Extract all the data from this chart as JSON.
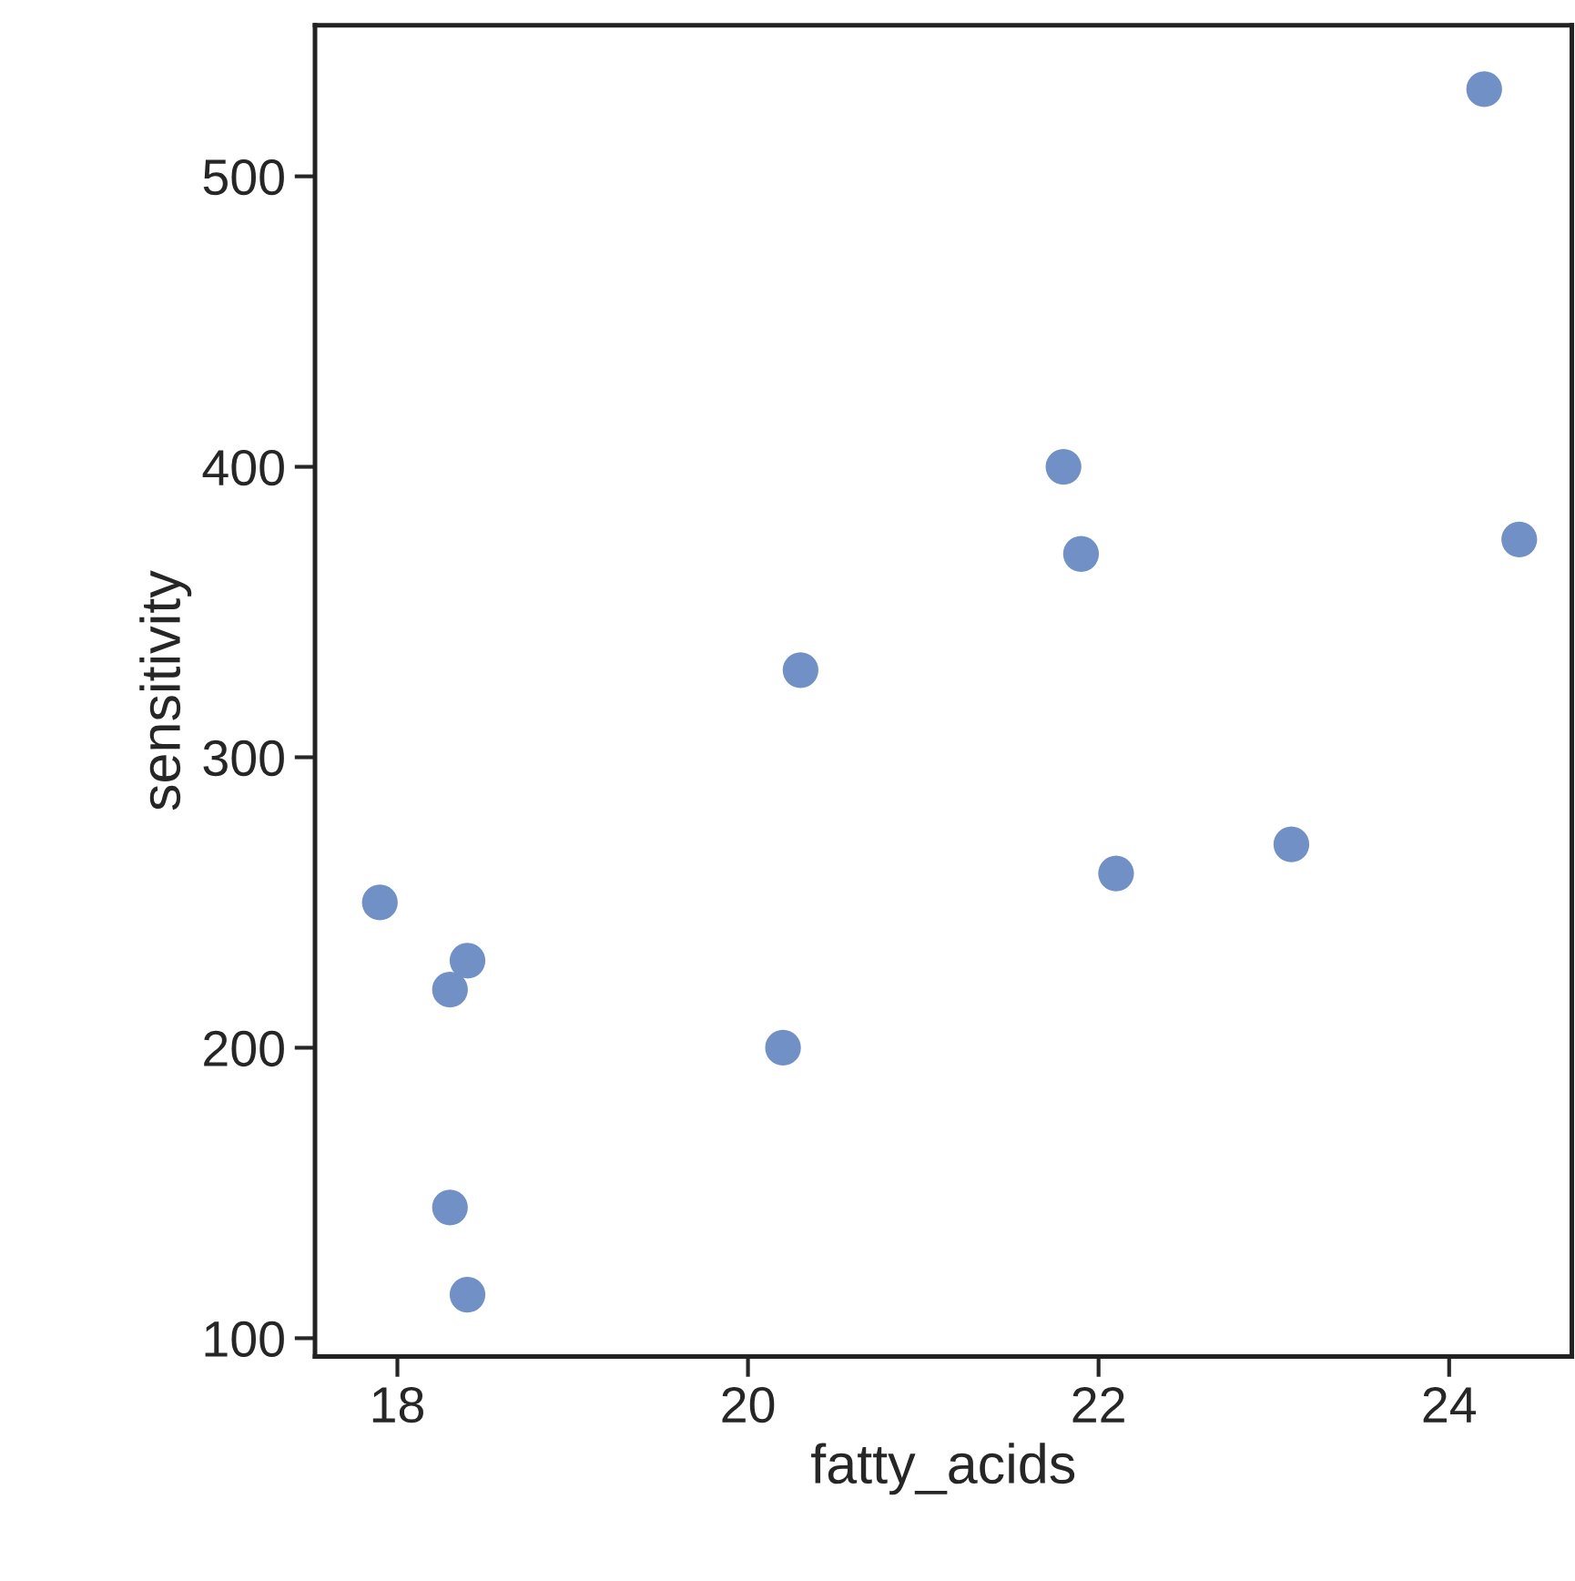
{
  "chart_data": {
    "type": "scatter",
    "xlabel": "fatty_acids",
    "ylabel": "sensitivity",
    "x": [
      17.9,
      18.3,
      18.4,
      18.3,
      18.4,
      20.2,
      20.3,
      21.8,
      21.9,
      22.1,
      23.1,
      24.2,
      24.4
    ],
    "values": [
      250,
      220,
      230,
      145,
      115,
      200,
      330,
      400,
      370,
      260,
      270,
      530,
      375
    ],
    "color": "#7090c6",
    "marker": "circle",
    "xlim": [
      17.53,
      24.7
    ],
    "ylim": [
      93.7,
      552
    ],
    "xticks": [
      18,
      20,
      22,
      24
    ],
    "yticks": [
      100,
      200,
      300,
      400,
      500
    ],
    "grid": false
  }
}
